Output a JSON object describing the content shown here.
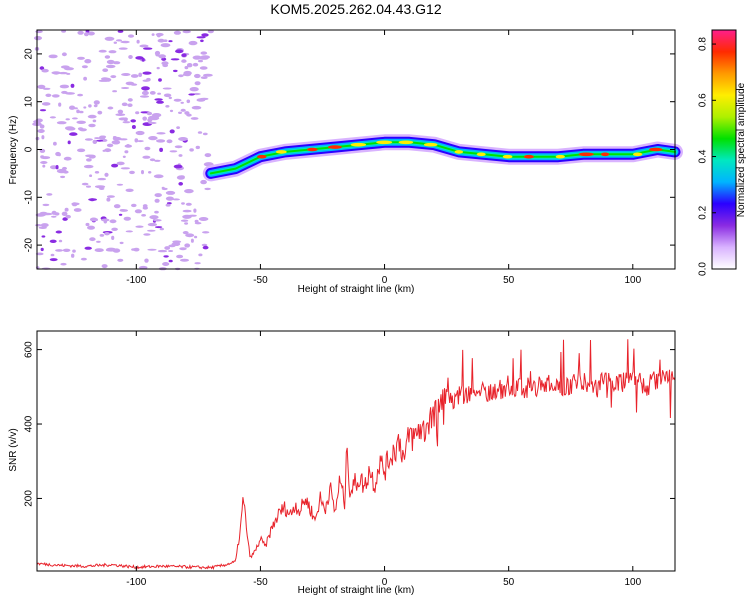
{
  "title": "KOM5.2025.262.04.43.G12",
  "colors": {
    "snr_line": "#e8232b",
    "axes": "#000000",
    "noise_dots": "#c9a2ee",
    "noise_dots_dark": "#8a2be2"
  },
  "chart_data": [
    {
      "type": "heatmap",
      "name": "spectrogram",
      "xlabel": "Height of straight line (km)",
      "ylabel": "Frequency (Hz)",
      "xlim": [
        -140,
        117
      ],
      "ylim": [
        -25,
        25
      ],
      "xticks": [
        -100,
        -50,
        0,
        50,
        100
      ],
      "yticks": [
        -20,
        -10,
        0,
        10,
        20
      ],
      "grid": false,
      "signal_onset_km": -70,
      "trace": {
        "x": [
          -70,
          -60,
          -50,
          -40,
          -30,
          -20,
          -10,
          0,
          10,
          20,
          30,
          40,
          50,
          60,
          70,
          80,
          90,
          100,
          110,
          117
        ],
        "y": [
          -5,
          -4,
          -1.5,
          -0.5,
          0,
          0.5,
          1,
          1.5,
          1.5,
          1,
          -0.5,
          -1,
          -1.5,
          -1.5,
          -1.5,
          -1,
          -1,
          -1,
          0,
          -0.5
        ]
      },
      "colorbar": {
        "label": "Normalized spectral amplitude",
        "range": [
          0,
          0.85
        ],
        "ticks": [
          "0.0",
          "0.2",
          "0.4",
          "0.6",
          "0.8"
        ],
        "colormap": [
          "#ffffff",
          "#d9b3ff",
          "#8a2be2",
          "#2a00ff",
          "#00b4ff",
          "#00e8c0",
          "#00e000",
          "#aef000",
          "#ffee00",
          "#ff9900",
          "#ff2a00",
          "#ff1e8c"
        ]
      }
    },
    {
      "type": "line",
      "name": "snr",
      "xlabel": "Height of straight line (km)",
      "ylabel": "SNR (v/v)",
      "xlim": [
        -140,
        117
      ],
      "ylim": [
        5,
        650
      ],
      "xticks": [
        -100,
        -50,
        0,
        50,
        100
      ],
      "yticks": [
        200,
        400,
        600
      ],
      "grid": false,
      "series": [
        {
          "name": "SNR",
          "x": [
            -140,
            -130,
            -120,
            -110,
            -100,
            -90,
            -80,
            -70,
            -65,
            -60,
            -58,
            -57,
            -56,
            -55,
            -54,
            -52,
            -50,
            -48,
            -46,
            -44,
            -42,
            -40,
            -38,
            -36,
            -34,
            -32,
            -30,
            -28,
            -26,
            -24,
            -22,
            -20,
            -18,
            -16,
            -15,
            -14,
            -12,
            -10,
            -8,
            -6,
            -4,
            -2,
            0,
            2,
            4,
            6,
            8,
            10,
            12,
            14,
            16,
            18,
            20,
            22,
            25,
            30,
            35,
            40,
            45,
            50,
            55,
            60,
            65,
            70,
            75,
            80,
            85,
            90,
            95,
            100,
            105,
            110,
            117
          ],
          "values": [
            25,
            20,
            18,
            22,
            15,
            18,
            16,
            14,
            20,
            30,
            120,
            195,
            150,
            80,
            40,
            60,
            90,
            70,
            110,
            140,
            165,
            175,
            155,
            185,
            165,
            200,
            175,
            140,
            200,
            170,
            230,
            160,
            250,
            185,
            360,
            215,
            240,
            255,
            230,
            280,
            235,
            300,
            275,
            310,
            330,
            360,
            300,
            375,
            360,
            390,
            380,
            420,
            410,
            440,
            460,
            475,
            480,
            490,
            485,
            505,
            495,
            500,
            510,
            500,
            505,
            520,
            495,
            525,
            510,
            530,
            500,
            520,
            520
          ]
        }
      ]
    }
  ]
}
